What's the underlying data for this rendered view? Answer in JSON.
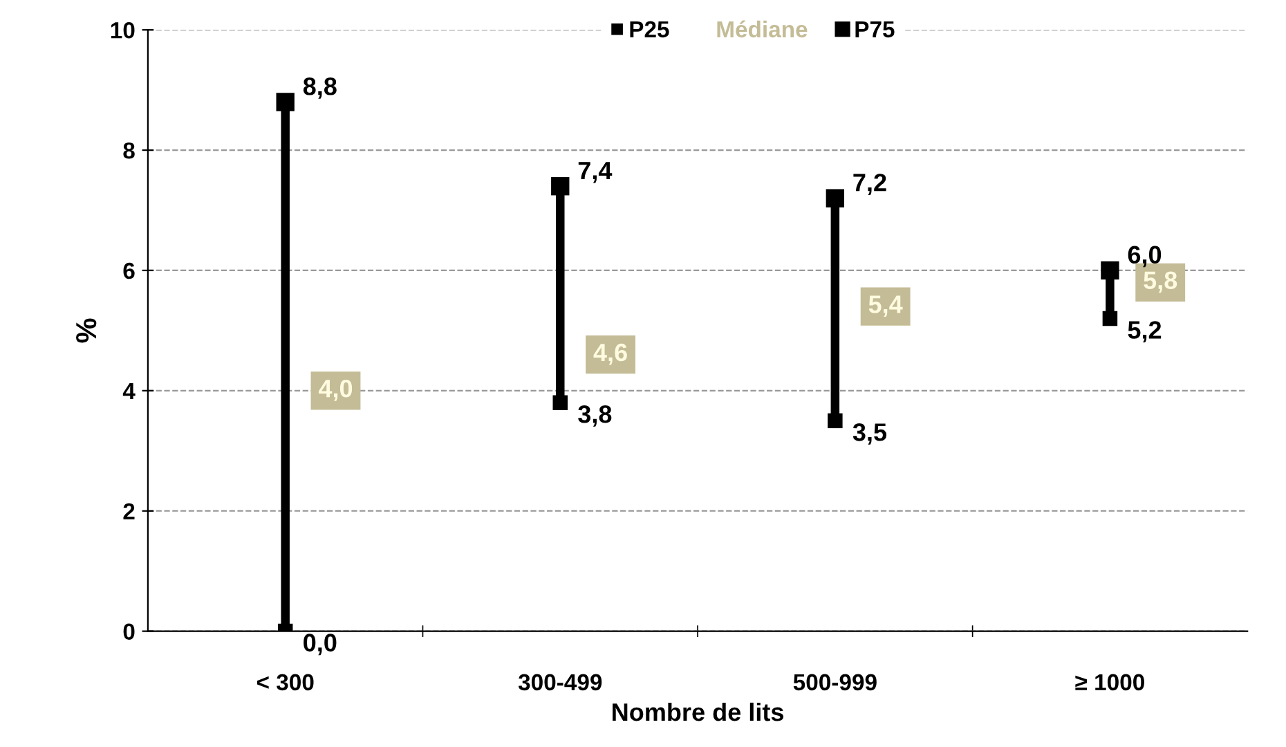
{
  "chart_data": {
    "type": "scatter",
    "xlabel": "Nombre de lits",
    "ylabel": "%",
    "categories": [
      "< 300",
      "300-499",
      "500-999",
      "≥ 1000"
    ],
    "series": [
      {
        "name": "P25",
        "marker": "square",
        "color": "#000000",
        "values": [
          0.0,
          3.8,
          3.5,
          5.2
        ],
        "value_labels": [
          "0,0",
          "3,8",
          "3,5",
          "5,2"
        ]
      },
      {
        "name": "Médiane",
        "color": "#c4bc96",
        "values": [
          4.0,
          4.6,
          5.4,
          5.8
        ],
        "value_labels": [
          "4,0",
          "4,6",
          "5,4",
          "5,8"
        ]
      },
      {
        "name": "P75",
        "marker": "square",
        "color": "#000000",
        "values": [
          8.8,
          7.4,
          7.2,
          6.0
        ],
        "value_labels": [
          "8,8",
          "7,4",
          "7,2",
          "6,0"
        ]
      }
    ],
    "ylim": [
      0,
      10
    ],
    "yticks": [
      0,
      2,
      4,
      6,
      8,
      10
    ],
    "grid": "y",
    "line_style": "dashed",
    "legend": "top"
  }
}
